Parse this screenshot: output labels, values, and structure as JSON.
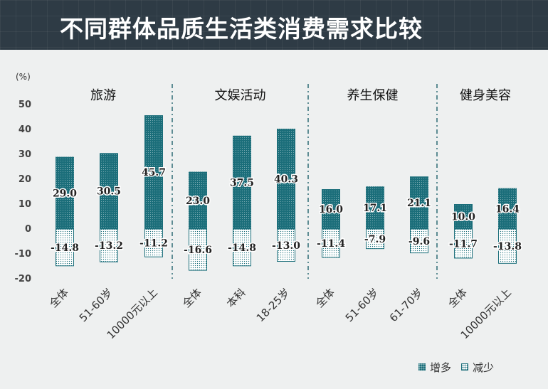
{
  "header": {
    "title": "不同群体品质生活类消费需求比较"
  },
  "legend": {
    "increase": "增多",
    "decrease": "减少"
  },
  "colors": {
    "bar": "#1b6e7a",
    "header_bg": "#2e3b45",
    "background": "#eef0f0"
  },
  "chart_data": {
    "type": "bar",
    "title": "不同群体品质生活类消费需求比较",
    "ylabel": "(%)",
    "ylim": [
      -20,
      50
    ],
    "yticks": [
      50,
      40,
      30,
      20,
      10,
      0,
      -10,
      -20
    ],
    "series": [
      {
        "name": "增多"
      },
      {
        "name": "减少"
      }
    ],
    "groups": [
      {
        "name": "旅游",
        "categories": [
          "全体",
          "51-60岁",
          "10000元以上"
        ],
        "increase": [
          29.0,
          30.5,
          45.7
        ],
        "decrease": [
          -14.8,
          -13.2,
          -11.2
        ]
      },
      {
        "name": "文娱活动",
        "categories": [
          "全体",
          "本科",
          "18-25岁"
        ],
        "increase": [
          23.0,
          37.5,
          40.3
        ],
        "decrease": [
          -16.6,
          -14.8,
          -13.0
        ]
      },
      {
        "name": "养生保健",
        "categories": [
          "全体",
          "51-60岁",
          "61-70岁"
        ],
        "increase": [
          16.0,
          17.1,
          21.1
        ],
        "decrease": [
          -11.4,
          -7.9,
          -9.6
        ]
      },
      {
        "name": "健身美容",
        "categories": [
          "全体",
          "10000元以上"
        ],
        "increase": [
          10.0,
          16.4
        ],
        "decrease": [
          -11.7,
          -13.8
        ]
      }
    ]
  }
}
